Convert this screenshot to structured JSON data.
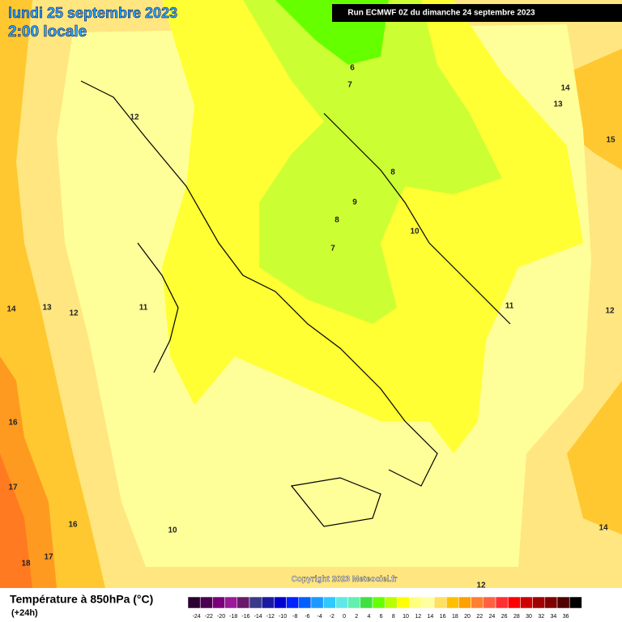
{
  "header": {
    "date": "lundi 25 septembre 2023",
    "time": "2:00 locale",
    "run": "Run ECMWF 0Z du dimanche 24 septembre 2023"
  },
  "map": {
    "contour_labels": [
      "6",
      "7",
      "8",
      "9",
      "8",
      "7",
      "10",
      "11",
      "12",
      "14",
      "13",
      "15",
      "14",
      "13",
      "12",
      "11",
      "12",
      "16",
      "17",
      "16",
      "17",
      "18",
      "10",
      "14",
      "12"
    ],
    "copyright": "Copyright 2023 Meteociel.fr"
  },
  "footer": {
    "title": "Température à 850hPa (°C)",
    "subtitle": "(+24h)"
  },
  "legend": {
    "labels": [
      "-24",
      "-22",
      "-20",
      "-18",
      "-16",
      "-14",
      "-12",
      "-10",
      "-8",
      "-6",
      "-4",
      "-2",
      "0",
      "2",
      "4",
      "6",
      "8",
      "10",
      "12",
      "14",
      "16",
      "18",
      "20",
      "22",
      "24",
      "26",
      "28",
      "30",
      "32",
      "34",
      "36"
    ],
    "colors": [
      "#2a0033",
      "#4b0050",
      "#7a007a",
      "#9a1a9a",
      "#6a1a6a",
      "#3a3a8a",
      "#1a1aa0",
      "#0000d0",
      "#0022ff",
      "#0060ff",
      "#1a9aff",
      "#30c8ff",
      "#60e8e8",
      "#60f0b0",
      "#40e040",
      "#66ff00",
      "#b8ff00",
      "#ffff00",
      "#ffff80",
      "#ffffa0",
      "#ffe060",
      "#ffc000",
      "#ffa000",
      "#ff8030",
      "#ff6040",
      "#ff3030",
      "#ff0000",
      "#d00000",
      "#a00000",
      "#800000",
      "#500000",
      "#000000"
    ]
  }
}
